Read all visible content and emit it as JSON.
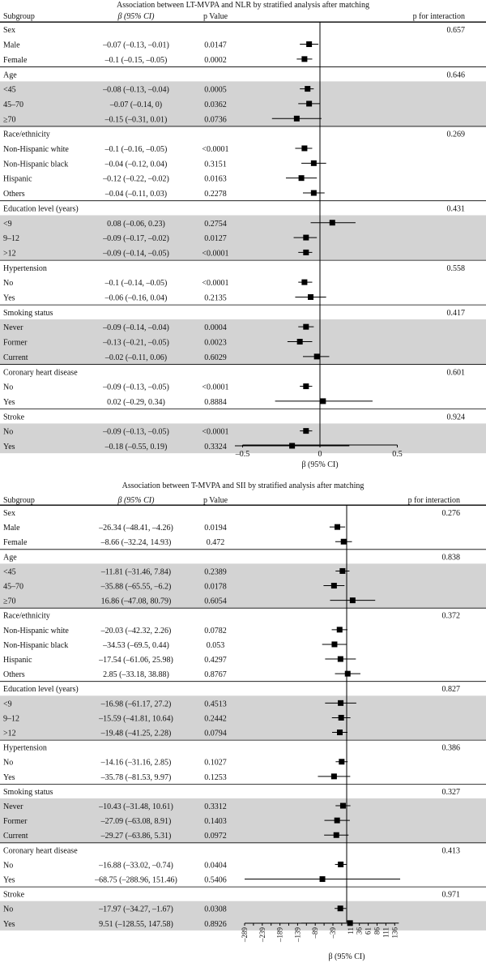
{
  "panels": [
    {
      "title": "Association between LT-MVPA and NLR by stratified analysis after matching",
      "headers": {
        "subgroup": "Subgroup",
        "beta": "β (95% CI)",
        "pvalue": "p Value",
        "interaction": "p for interaction"
      },
      "axis_title": "β (95% CI)",
      "chart_data": {
        "type": "forest",
        "title": "Association between LT-MVPA and NLR by stratified analysis after matching",
        "xlabel": "β (95% CI)",
        "xlim": [
          -0.65,
          0.5
        ],
        "xticks": [
          -0.5,
          0,
          0.5
        ],
        "xtick_labels": [
          "–0.5",
          "0",
          "0.5"
        ],
        "reference_line": 0,
        "groups": [
          {
            "label": "Sex",
            "interaction": "0.657",
            "shaded": false,
            "rows": [
              {
                "label": "Male",
                "ci_text": "–0.07 (–0.13, –0.01)",
                "p": "0.0147",
                "est": -0.07,
                "lo": -0.13,
                "hi": -0.01
              },
              {
                "label": "Female",
                "ci_text": "–0.1 (–0.15, –0.05)",
                "p": "0.0002",
                "est": -0.1,
                "lo": -0.15,
                "hi": -0.05
              }
            ]
          },
          {
            "label": "Age",
            "interaction": "0.646",
            "shaded": true,
            "rows": [
              {
                "label": "<45",
                "ci_text": "–0.08 (–0.13, –0.04)",
                "p": "0.0005",
                "est": -0.08,
                "lo": -0.13,
                "hi": -0.04
              },
              {
                "label": "45–70",
                "ci_text": "–0.07 (–0.14, 0)",
                "p": "0.0362",
                "est": -0.07,
                "lo": -0.14,
                "hi": 0
              },
              {
                "label": "≥70",
                "ci_text": "–0.15 (–0.31, 0.01)",
                "p": "0.0736",
                "est": -0.15,
                "lo": -0.31,
                "hi": 0.01
              }
            ]
          },
          {
            "label": "Race/ethnicity",
            "interaction": "0.269",
            "shaded": false,
            "rows": [
              {
                "label": "Non-Hispanic white",
                "ci_text": "–0.1 (–0.16, –0.05)",
                "p": "<0.0001",
                "est": -0.1,
                "lo": -0.16,
                "hi": -0.05
              },
              {
                "label": "Non-Hispanic black",
                "ci_text": "–0.04 (–0.12, 0.04)",
                "p": "0.3151",
                "est": -0.04,
                "lo": -0.12,
                "hi": 0.04
              },
              {
                "label": "Hispanic",
                "ci_text": "–0.12 (–0.22, –0.02)",
                "p": "0.0163",
                "est": -0.12,
                "lo": -0.22,
                "hi": -0.02
              },
              {
                "label": "Others",
                "ci_text": "–0.04 (–0.11, 0.03)",
                "p": "0.2278",
                "est": -0.04,
                "lo": -0.11,
                "hi": 0.03
              }
            ]
          },
          {
            "label": "Education level (years)",
            "interaction": "0.431",
            "shaded": true,
            "rows": [
              {
                "label": "<9",
                "ci_text": "0.08 (–0.06, 0.23)",
                "p": "0.2754",
                "est": 0.08,
                "lo": -0.06,
                "hi": 0.23
              },
              {
                "label": "9–12",
                "ci_text": "–0.09 (–0.17, –0.02)",
                "p": "0.0127",
                "est": -0.09,
                "lo": -0.17,
                "hi": -0.02
              },
              {
                "label": ">12",
                "ci_text": "–0.09 (–0.14, –0.05)",
                "p": "<0.0001",
                "est": -0.09,
                "lo": -0.14,
                "hi": -0.05
              }
            ]
          },
          {
            "label": "Hypertension",
            "interaction": "0.558",
            "shaded": false,
            "rows": [
              {
                "label": "No",
                "ci_text": "–0.1 (–0.14, –0.05)",
                "p": "<0.0001",
                "est": -0.1,
                "lo": -0.14,
                "hi": -0.05
              },
              {
                "label": "Yes",
                "ci_text": "–0.06 (–0.16, 0.04)",
                "p": "0.2135",
                "est": -0.06,
                "lo": -0.16,
                "hi": 0.04
              }
            ]
          },
          {
            "label": "Smoking status",
            "interaction": "0.417",
            "shaded": true,
            "rows": [
              {
                "label": "Never",
                "ci_text": "–0.09 (–0.14, –0.04)",
                "p": "0.0004",
                "est": -0.09,
                "lo": -0.14,
                "hi": -0.04
              },
              {
                "label": "Former",
                "ci_text": "–0.13 (–0.21, –0.05)",
                "p": "0.0023",
                "est": -0.13,
                "lo": -0.21,
                "hi": -0.05
              },
              {
                "label": "Current",
                "ci_text": "–0.02 (–0.11, 0.06)",
                "p": "0.6029",
                "est": -0.02,
                "lo": -0.11,
                "hi": 0.06
              }
            ]
          },
          {
            "label": "Coronary heart disease",
            "interaction": "0.601",
            "shaded": false,
            "rows": [
              {
                "label": "No",
                "ci_text": "–0.09 (–0.13, –0.05)",
                "p": "<0.0001",
                "est": -0.09,
                "lo": -0.13,
                "hi": -0.05
              },
              {
                "label": "Yes",
                "ci_text": "0.02 (–0.29, 0.34)",
                "p": "0.8884",
                "est": 0.02,
                "lo": -0.29,
                "hi": 0.34
              }
            ]
          },
          {
            "label": "Stroke",
            "interaction": "0.924",
            "shaded": true,
            "rows": [
              {
                "label": "No",
                "ci_text": "–0.09 (–0.13, –0.05)",
                "p": "<0.0001",
                "est": -0.09,
                "lo": -0.13,
                "hi": -0.05
              },
              {
                "label": "Yes",
                "ci_text": "–0.18 (–0.55, 0.19)",
                "p": "0.3324",
                "est": -0.18,
                "lo": -0.55,
                "hi": 0.19
              }
            ]
          }
        ]
      }
    },
    {
      "title": "Association between T-MVPA and SII by stratified analysis after matching",
      "headers": {
        "subgroup": "Subgroup",
        "beta": "β (95% CI)",
        "pvalue": "p Value",
        "interaction": "p for interaction"
      },
      "axis_title": "β (95% CI)",
      "chart_data": {
        "type": "forest",
        "title": "Association between T-MVPA and SII by stratified analysis after matching",
        "xlabel": "β (95% CI)",
        "xlim": [
          -289,
          150
        ],
        "xticks": [
          -289,
          -264,
          -239,
          -214,
          -189,
          -164,
          -139,
          -114,
          -89,
          -64,
          -39,
          -14,
          11,
          36,
          61,
          86,
          111,
          136
        ],
        "xtick_labels": [
          "–289",
          "",
          "–239",
          "",
          "–189",
          "",
          "–139",
          "",
          "–89",
          "",
          "–39",
          "",
          "11",
          "36",
          "61",
          "86",
          "111",
          "136"
        ],
        "reference_line": 0,
        "groups": [
          {
            "label": "Sex",
            "interaction": "0.276",
            "shaded": false,
            "rows": [
              {
                "label": "Male",
                "ci_text": "–26.34 (–48.41, –4.26)",
                "p": "0.0194",
                "est": -26.34,
                "lo": -48.41,
                "hi": -4.26
              },
              {
                "label": "Female",
                "ci_text": "–8.66 (–32.24, 14.93)",
                "p": "0.472",
                "est": -8.66,
                "lo": -32.24,
                "hi": 14.93
              }
            ]
          },
          {
            "label": "Age",
            "interaction": "0.838",
            "shaded": true,
            "rows": [
              {
                "label": "<45",
                "ci_text": "–11.81 (–31.46, 7.84)",
                "p": "0.2389",
                "est": -11.81,
                "lo": -31.46,
                "hi": 7.84
              },
              {
                "label": "45–70",
                "ci_text": "–35.88 (–65.55, –6.2)",
                "p": "0.0178",
                "est": -35.88,
                "lo": -65.55,
                "hi": -6.2
              },
              {
                "label": "≥70",
                "ci_text": "16.86 (–47.08, 80.79)",
                "p": "0.6054",
                "est": 16.86,
                "lo": -47.08,
                "hi": 80.79
              }
            ]
          },
          {
            "label": "Race/ethnicity",
            "interaction": "0.372",
            "shaded": false,
            "rows": [
              {
                "label": "Non-Hispanic white",
                "ci_text": "–20.03 (–42.32, 2.26)",
                "p": "0.0782",
                "est": -20.03,
                "lo": -42.32,
                "hi": 2.26
              },
              {
                "label": "Non-Hispanic black",
                "ci_text": "–34.53 (–69.5, 0.44)",
                "p": "0.053",
                "est": -34.53,
                "lo": -69.5,
                "hi": 0.44
              },
              {
                "label": "Hispanic",
                "ci_text": "–17.54 (–61.06, 25.98)",
                "p": "0.4297",
                "est": -17.54,
                "lo": -61.06,
                "hi": 25.98
              },
              {
                "label": "Others",
                "ci_text": "2.85 (–33.18, 38.88)",
                "p": "0.8767",
                "est": 2.85,
                "lo": -33.18,
                "hi": 38.88
              }
            ]
          },
          {
            "label": "Education level (years)",
            "interaction": "0.827",
            "shaded": true,
            "rows": [
              {
                "label": "<9",
                "ci_text": "–16.98 (–61.17, 27.2)",
                "p": "0.4513",
                "est": -16.98,
                "lo": -61.17,
                "hi": 27.2
              },
              {
                "label": "9–12",
                "ci_text": "–15.59 (–41.81, 10.64)",
                "p": "0.2442",
                "est": -15.59,
                "lo": -41.81,
                "hi": 10.64
              },
              {
                "label": ">12",
                "ci_text": "–19.48 (–41.25, 2.28)",
                "p": "0.0794",
                "est": -19.48,
                "lo": -41.25,
                "hi": 2.28
              }
            ]
          },
          {
            "label": "Hypertension",
            "interaction": "0.386",
            "shaded": false,
            "rows": [
              {
                "label": "No",
                "ci_text": "–14.16 (–31.16, 2.85)",
                "p": "0.1027",
                "est": -14.16,
                "lo": -31.16,
                "hi": 2.85
              },
              {
                "label": "Yes",
                "ci_text": "–35.78 (–81.53, 9.97)",
                "p": "0.1253",
                "est": -35.78,
                "lo": -81.53,
                "hi": 9.97
              }
            ]
          },
          {
            "label": "Smoking status",
            "interaction": "0.327",
            "shaded": true,
            "rows": [
              {
                "label": "Never",
                "ci_text": "–10.43 (–31.48, 10.61)",
                "p": "0.3312",
                "est": -10.43,
                "lo": -31.48,
                "hi": 10.61
              },
              {
                "label": "Former",
                "ci_text": "–27.09 (–63.08, 8.91)",
                "p": "0.1403",
                "est": -27.09,
                "lo": -63.08,
                "hi": 8.91
              },
              {
                "label": "Current",
                "ci_text": "–29.27 (–63.86, 5.31)",
                "p": "0.0972",
                "est": -29.27,
                "lo": -63.86,
                "hi": 5.31
              }
            ]
          },
          {
            "label": "Coronary heart disease",
            "interaction": "0.413",
            "shaded": false,
            "rows": [
              {
                "label": "No",
                "ci_text": "–16.88 (–33.02, –0.74)",
                "p": "0.0404",
                "est": -16.88,
                "lo": -33.02,
                "hi": -0.74
              },
              {
                "label": "Yes",
                "ci_text": "–68.75 (–288.96, 151.46)",
                "p": "0.5406",
                "est": -68.75,
                "lo": -288.96,
                "hi": 151.46
              }
            ]
          },
          {
            "label": "Stroke",
            "interaction": "0.971",
            "shaded": true,
            "rows": [
              {
                "label": "No",
                "ci_text": "–17.97 (–34.27, –1.67)",
                "p": "0.0308",
                "est": -17.97,
                "lo": -34.27,
                "hi": -1.67
              },
              {
                "label": "Yes",
                "ci_text": "9.51 (–128.55, 147.58)",
                "p": "0.8926",
                "est": 9.51,
                "lo": -128.55,
                "hi": 147.58
              }
            ]
          }
        ]
      }
    }
  ],
  "colors": {
    "shade": "#d3d3d3",
    "ink": "#111111",
    "rule": "#000000"
  }
}
